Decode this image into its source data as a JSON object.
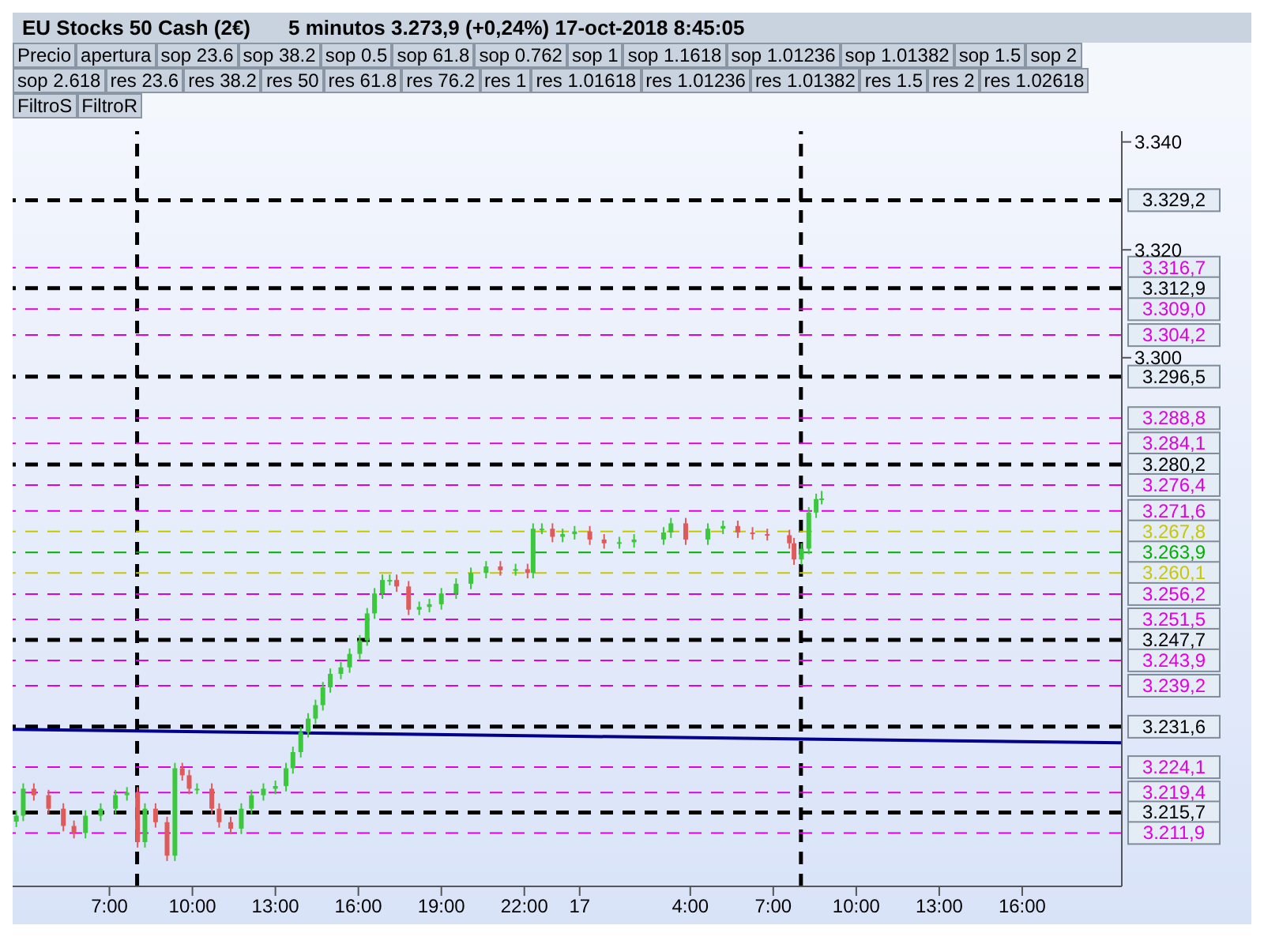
{
  "chart_data": {
    "type": "candlestick",
    "title": "EU Stocks 50 Cash (2€)",
    "subtitle": "5 minutos   3.273,9 (+0,24%)   17-oct-2018 8:45:05",
    "annotations": [
      "Precio",
      "apertura",
      "sop 23.6",
      "sop 38.2",
      "sop 0.5",
      "sop 61.8",
      "sop 0.762",
      "sop 1",
      "sop 1.1618",
      "sop 1.01236",
      "sop 1.01382",
      "sop 1.5",
      "sop 2",
      "sop 2.618",
      "res 23.6",
      "res 38.2",
      "res 50",
      "res 61.8",
      "res 76.2",
      "res 1",
      "res 1.01618",
      "res 1.01236",
      "res 1.01382",
      "res 1.5",
      "res 2",
      "res 1.02618",
      "FiltroS",
      "FiltroR"
    ],
    "x": [
      "2018-10-16T03:38",
      "2018-10-16T03:53",
      "2018-10-16T04:16",
      "2018-10-16T04:48",
      "2018-10-16T05:20",
      "2018-10-16T05:43",
      "2018-10-16T06:08",
      "2018-10-16T06:41",
      "2018-10-16T07:13",
      "2018-10-16T07:38",
      "2018-10-16T08:01",
      "2018-10-16T08:17",
      "2018-10-16T08:40",
      "2018-10-16T09:05",
      "2018-10-16T09:22",
      "2018-10-16T09:38",
      "2018-10-16T09:53",
      "2018-10-16T10:10",
      "2018-10-16T10:42",
      "2018-10-16T10:58",
      "2018-10-16T11:23",
      "2018-10-16T11:46",
      "2018-10-16T12:08",
      "2018-10-16T12:34",
      "2018-10-16T13:00",
      "2018-10-16T13:23",
      "2018-10-16T13:38",
      "2018-10-16T13:55",
      "2018-10-16T14:11",
      "2018-10-16T14:27",
      "2018-10-16T14:43",
      "2018-10-16T14:59",
      "2018-10-16T15:22",
      "2018-10-16T15:41",
      "2018-10-16T16:03",
      "2018-10-16T16:19",
      "2018-10-16T16:35",
      "2018-10-16T16:52",
      "2018-10-16T17:08",
      "2018-10-16T17:23",
      "2018-10-16T17:49",
      "2018-10-16T18:12",
      "2018-10-16T18:34",
      "2018-10-16T19:00",
      "2018-10-16T19:32",
      "2018-10-16T20:04",
      "2018-10-16T20:37",
      "2018-10-16T21:08",
      "2018-10-16T21:41",
      "2018-10-16T22:07",
      "2018-10-16T22:19",
      "2018-10-16T22:38",
      "2018-10-16T23:01",
      "2018-10-16T23:23",
      "2018-10-16T23:49",
      "2018-10-17T00:22",
      "2018-10-17T00:53",
      "2018-10-17T01:26",
      "2018-10-17T01:58",
      "2018-10-17T03:02",
      "2018-10-17T03:18",
      "2018-10-17T03:50",
      "2018-10-17T04:38",
      "2018-10-17T05:11",
      "2018-10-17T05:43",
      "2018-10-17T06:15",
      "2018-10-17T06:47",
      "2018-10-17T07:35",
      "2018-10-17T07:45",
      "2018-10-17T08:01",
      "2018-10-17T08:17",
      "2018-10-17T08:33",
      "2018-10-17T08:45"
    ],
    "ohlc": [
      [
        3214,
        3216.1,
        3213,
        3215.1
      ],
      [
        3215.1,
        3221.1,
        3214.1,
        3220.1
      ],
      [
        3220.1,
        3221.1,
        3217.9,
        3218.9
      ],
      [
        3218.9,
        3219.9,
        3215.4,
        3216.4
      ],
      [
        3216.4,
        3217.4,
        3212.2,
        3213.2
      ],
      [
        3213.2,
        3214.2,
        3210.9,
        3211.9
      ],
      [
        3211.9,
        3216.1,
        3210.9,
        3215.1
      ],
      [
        3215.1,
        3217.4,
        3214.1,
        3216.4
      ],
      [
        3216.4,
        3219.9,
        3215.4,
        3218.9
      ],
      [
        3218.9,
        3220.4,
        3217.9,
        3219.4
      ],
      [
        3219.4,
        3220.4,
        3209.2,
        3210.2
      ],
      [
        3210.2,
        3217.4,
        3209.2,
        3216.4
      ],
      [
        3216.4,
        3217.4,
        3212.9,
        3213.9
      ],
      [
        3213.9,
        3214.9,
        3206.7,
        3207.7
      ],
      [
        3207.7,
        3224.9,
        3206.7,
        3223.9
      ],
      [
        3223.9,
        3224.9,
        3221.6,
        3222.6
      ],
      [
        3222.6,
        3223.6,
        3219.1,
        3220.1
      ],
      [
        3220.1,
        3221.1,
        3219.1,
        3220.1
      ],
      [
        3220.1,
        3221.1,
        3215.4,
        3216.4
      ],
      [
        3216.4,
        3217.4,
        3212.9,
        3213.9
      ],
      [
        3213.9,
        3214.9,
        3211.7,
        3212.7
      ],
      [
        3212.7,
        3217.4,
        3211.7,
        3216.4
      ],
      [
        3216.4,
        3219.9,
        3215.4,
        3218.9
      ],
      [
        3218.9,
        3221.1,
        3217.9,
        3220.1
      ],
      [
        3220.1,
        3221.6,
        3219.1,
        3220.6
      ],
      [
        3220.6,
        3224.9,
        3219.6,
        3223.9
      ],
      [
        3223.9,
        3227.9,
        3222.9,
        3226.9
      ],
      [
        3226.9,
        3231.6,
        3225.9,
        3230.6
      ],
      [
        3230.6,
        3234.1,
        3229.6,
        3233.1
      ],
      [
        3233.1,
        3236.6,
        3232.1,
        3235.6
      ],
      [
        3235.6,
        3239.9,
        3234.6,
        3238.9
      ],
      [
        3238.9,
        3242.4,
        3237.9,
        3241.4
      ],
      [
        3241.4,
        3243.6,
        3240.4,
        3242.6
      ],
      [
        3242.6,
        3246.1,
        3241.6,
        3245.1
      ],
      [
        3245.1,
        3248.6,
        3244.1,
        3247.6
      ],
      [
        3247.6,
        3253.6,
        3246.6,
        3252.6
      ],
      [
        3252.6,
        3257.3,
        3251.6,
        3256.3
      ],
      [
        3256.3,
        3259.8,
        3255.3,
        3258.8
      ],
      [
        3258.8,
        3259.8,
        3257.8,
        3258.8
      ],
      [
        3258.8,
        3259.8,
        3256.6,
        3257.6
      ],
      [
        3257.6,
        3258.6,
        3252.3,
        3253.3
      ],
      [
        3253.3,
        3254.8,
        3252.3,
        3253.8
      ],
      [
        3253.8,
        3255.3,
        3252.8,
        3254.3
      ],
      [
        3254.3,
        3257.3,
        3253.3,
        3256.3
      ],
      [
        3256.3,
        3259.1,
        3255.3,
        3258.1
      ],
      [
        3258.1,
        3261.1,
        3257.1,
        3260.1
      ],
      [
        3260.1,
        3262.3,
        3259.1,
        3261.3
      ],
      [
        3261.3,
        3262.3,
        3259.6,
        3260.6
      ],
      [
        3260.6,
        3261.8,
        3259.6,
        3260.8
      ],
      [
        3260.8,
        3261.8,
        3259.1,
        3260.1
      ],
      [
        3260.1,
        3269.3,
        3259.1,
        3268.3
      ],
      [
        3268.3,
        3269.3,
        3267.3,
        3268.3
      ],
      [
        3268.3,
        3269.3,
        3265.8,
        3266.8
      ],
      [
        3266.8,
        3268.3,
        3265.8,
        3267.3
      ],
      [
        3267.3,
        3268.8,
        3266.3,
        3267.8
      ],
      [
        3267.8,
        3268.8,
        3265.3,
        3266.3
      ],
      [
        3266.3,
        3267.3,
        3264.6,
        3265.6
      ],
      [
        3265.6,
        3266.8,
        3264.6,
        3265.8
      ],
      [
        3265.8,
        3267.3,
        3264.8,
        3266.3
      ],
      [
        3266.3,
        3268.6,
        3265.3,
        3267.6
      ],
      [
        3267.6,
        3270.3,
        3266.6,
        3269.3
      ],
      [
        3269.3,
        3270.3,
        3265.3,
        3266.3
      ],
      [
        3266.3,
        3269.3,
        3265.3,
        3268.3
      ],
      [
        3268.3,
        3269.8,
        3267.3,
        3268.8
      ],
      [
        3268.8,
        3269.8,
        3266.6,
        3267.6
      ],
      [
        3267.6,
        3268.6,
        3266.3,
        3267.3
      ],
      [
        3267.3,
        3268.3,
        3266.1,
        3267.1
      ],
      [
        3267.1,
        3268.1,
        3264.6,
        3265.6
      ],
      [
        3265.6,
        3266.6,
        3261.6,
        3262.6
      ],
      [
        3262.6,
        3265.6,
        3261.6,
        3264.6
      ],
      [
        3264.6,
        3272.3,
        3263.6,
        3271.3
      ],
      [
        3271.3,
        3274.8,
        3270.3,
        3273.8
      ],
      [
        3273.8,
        3275.3,
        3272.8,
        3273.9
      ]
    ],
    "series": [
      {
        "type": "line",
        "x": [
          "2018-10-16T03:30",
          "2018-10-17T19:36"
        ],
        "values": [
          3231.1,
          3228.6
        ],
        "color": "#00008b"
      }
    ],
    "xlim": [
      "2018-10-16T03:30",
      "2018-10-17T19:36"
    ],
    "xticks": [
      {
        "value": "2018-10-16T07:00",
        "label": "7:00"
      },
      {
        "value": "2018-10-16T10:00",
        "label": "10:00"
      },
      {
        "value": "2018-10-16T13:00",
        "label": "13:00"
      },
      {
        "value": "2018-10-16T16:00",
        "label": "16:00"
      },
      {
        "value": "2018-10-16T19:00",
        "label": "19:00"
      },
      {
        "value": "2018-10-16T22:00",
        "label": "22:00"
      },
      {
        "value": "2018-10-17T00:00",
        "label": "17"
      },
      {
        "value": "2018-10-17T04:00",
        "label": "4:00"
      },
      {
        "value": "2018-10-17T07:00",
        "label": "7:00"
      },
      {
        "value": "2018-10-17T10:00",
        "label": "10:00"
      },
      {
        "value": "2018-10-17T13:00",
        "label": "13:00"
      },
      {
        "value": "2018-10-17T16:00",
        "label": "16:00"
      }
    ],
    "ylim": [
      3202,
      3342
    ],
    "yticks": [
      {
        "value": 3300,
        "label": "3.300"
      },
      {
        "value": 3320,
        "label": "3.320"
      },
      {
        "value": 3340,
        "label": "3.340"
      }
    ],
    "ref_lines": [
      {
        "axis": "x",
        "value": "2018-10-16T08:00",
        "color": "#000000",
        "line_style": "dashed"
      },
      {
        "axis": "x",
        "value": "2018-10-17T08:00",
        "color": "#000000",
        "line_style": "dashed"
      },
      {
        "axis": "y",
        "value": 3329.2,
        "label": "3.329,2",
        "color": "#000000",
        "line_style": "dashed"
      },
      {
        "axis": "y",
        "value": 3316.7,
        "label": "3.316,7",
        "color": "#e000e0",
        "line_style": "dashed"
      },
      {
        "axis": "y",
        "value": 3312.9,
        "label": "3.312,9",
        "color": "#000000",
        "line_style": "dashed"
      },
      {
        "axis": "y",
        "value": 3309.0,
        "label": "3.309,0",
        "color": "#e000e0",
        "line_style": "dashed"
      },
      {
        "axis": "y",
        "value": 3304.2,
        "label": "3.304,2",
        "color": "#e000e0",
        "line_style": "dashed"
      },
      {
        "axis": "y",
        "value": 3296.5,
        "label": "3.296,5",
        "color": "#000000",
        "line_style": "dashed"
      },
      {
        "axis": "y",
        "value": 3288.8,
        "label": "3.288,8",
        "color": "#e000e0",
        "line_style": "dashed"
      },
      {
        "axis": "y",
        "value": 3284.1,
        "label": "3.284,1",
        "color": "#e000e0",
        "line_style": "dashed"
      },
      {
        "axis": "y",
        "value": 3280.2,
        "label": "3.280,2",
        "color": "#000000",
        "line_style": "dashed"
      },
      {
        "axis": "y",
        "value": 3276.4,
        "label": "3.276,4",
        "color": "#e000e0",
        "line_style": "dashed"
      },
      {
        "axis": "y",
        "value": 3271.6,
        "label": "3.271,6",
        "color": "#e000e0",
        "line_style": "dashed"
      },
      {
        "axis": "y",
        "value": 3267.8,
        "label": "3.267,8",
        "color": "#c8c800",
        "line_style": "dashed"
      },
      {
        "axis": "y",
        "value": 3263.9,
        "label": "3.263,9",
        "color": "#00b000",
        "line_style": "dashed"
      },
      {
        "axis": "y",
        "value": 3260.1,
        "label": "3.260,1",
        "color": "#c8c800",
        "line_style": "dashed"
      },
      {
        "axis": "y",
        "value": 3256.2,
        "label": "3.256,2",
        "color": "#e000e0",
        "line_style": "dashed"
      },
      {
        "axis": "y",
        "value": 3251.5,
        "label": "3.251,5",
        "color": "#e000e0",
        "line_style": "dashed"
      },
      {
        "axis": "y",
        "value": 3247.7,
        "label": "3.247,7",
        "color": "#000000",
        "line_style": "dashed"
      },
      {
        "axis": "y",
        "value": 3243.9,
        "label": "3.243,9",
        "color": "#e000e0",
        "line_style": "dashed"
      },
      {
        "axis": "y",
        "value": 3239.2,
        "label": "3.239,2",
        "color": "#e000e0",
        "line_style": "dashed"
      },
      {
        "axis": "y",
        "value": 3231.6,
        "label": "3.231,6",
        "color": "#000000",
        "line_style": "dashed"
      },
      {
        "axis": "y",
        "value": 3224.1,
        "label": "3.224,1",
        "color": "#e000e0",
        "line_style": "dashed"
      },
      {
        "axis": "y",
        "value": 3219.4,
        "label": "3.219,4",
        "color": "#e000e0",
        "line_style": "dashed"
      },
      {
        "axis": "y",
        "value": 3215.7,
        "label": "3.215,7",
        "color": "#000000",
        "line_style": "dashed"
      },
      {
        "axis": "y",
        "value": 3211.9,
        "label": "3.211,9",
        "color": "#e000e0",
        "line_style": "dashed"
      }
    ]
  }
}
